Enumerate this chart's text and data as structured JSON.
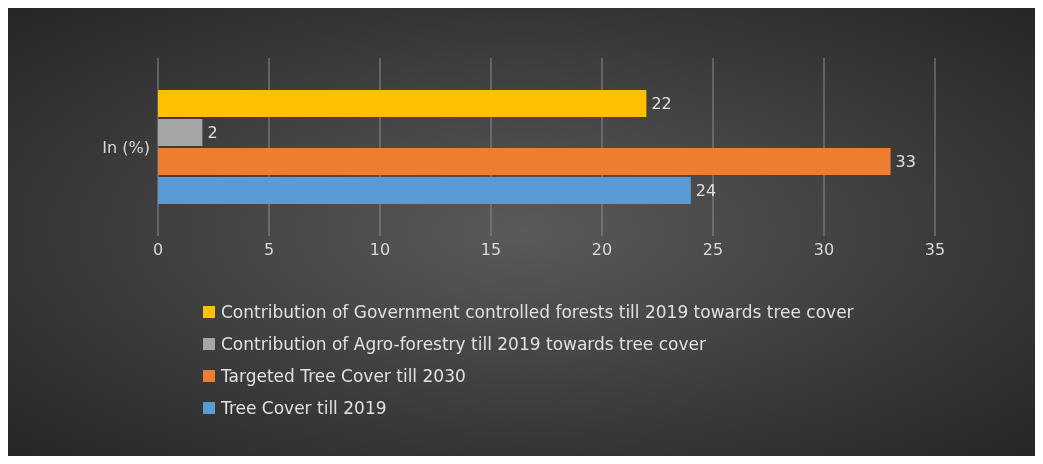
{
  "chart_data": {
    "type": "bar",
    "orientation": "horizontal",
    "categories": [
      "In (%)"
    ],
    "series": [
      {
        "name": "Contribution of Government controlled forests till 2019 towards tree cover",
        "color": "#ffc000",
        "values": [
          22
        ]
      },
      {
        "name": "Contribution of Agro-forestry till 2019 towards tree cover",
        "color": "#a5a5a5",
        "values": [
          2
        ]
      },
      {
        "name": "Targeted Tree Cover till 2030",
        "color": "#ed7d31",
        "values": [
          33
        ]
      },
      {
        "name": "Tree Cover till 2019",
        "color": "#5b9bd5",
        "values": [
          24
        ]
      }
    ],
    "xlim": [
      0,
      35
    ],
    "xticks": [
      0,
      5,
      10,
      15,
      20,
      25,
      30,
      35
    ],
    "grid": "x",
    "legend": "bottom",
    "data_labels": true
  }
}
